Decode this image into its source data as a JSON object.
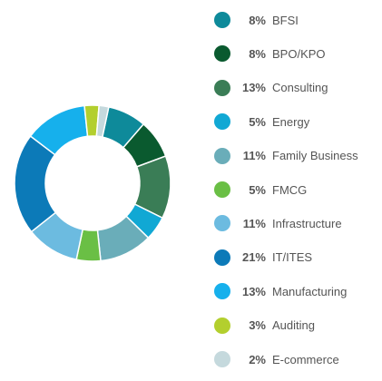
{
  "chart_data": {
    "type": "pie",
    "variant": "donut",
    "legend_position": "right",
    "slices": [
      {
        "label": "BFSI",
        "value": 8,
        "display": "8%",
        "color": "#0e8a9a"
      },
      {
        "label": "BPO/KPO",
        "value": 8,
        "display": "8%",
        "color": "#0a5a2f"
      },
      {
        "label": "Consulting",
        "value": 13,
        "display": "13%",
        "color": "#3a7d56"
      },
      {
        "label": "Energy",
        "value": 5,
        "display": "5%",
        "color": "#11a8d4"
      },
      {
        "label": "Family Business",
        "value": 11,
        "display": "11%",
        "color": "#6aadb9"
      },
      {
        "label": "FMCG",
        "value": 5,
        "display": "5%",
        "color": "#6abf45"
      },
      {
        "label": "Infrastructure",
        "value": 11,
        "display": "11%",
        "color": "#6cbbe0"
      },
      {
        "label": "IT/ITES",
        "value": 21,
        "display": "21%",
        "color": "#0c7ab8"
      },
      {
        "label": "Manufacturing",
        "value": 13,
        "display": "13%",
        "color": "#16b0ec"
      },
      {
        "label": "Auditing",
        "value": 3,
        "display": "3%",
        "color": "#b3cf2e"
      },
      {
        "label": "E-commerce",
        "value": 2,
        "display": "2%",
        "color": "#c5d9dd"
      }
    ]
  }
}
